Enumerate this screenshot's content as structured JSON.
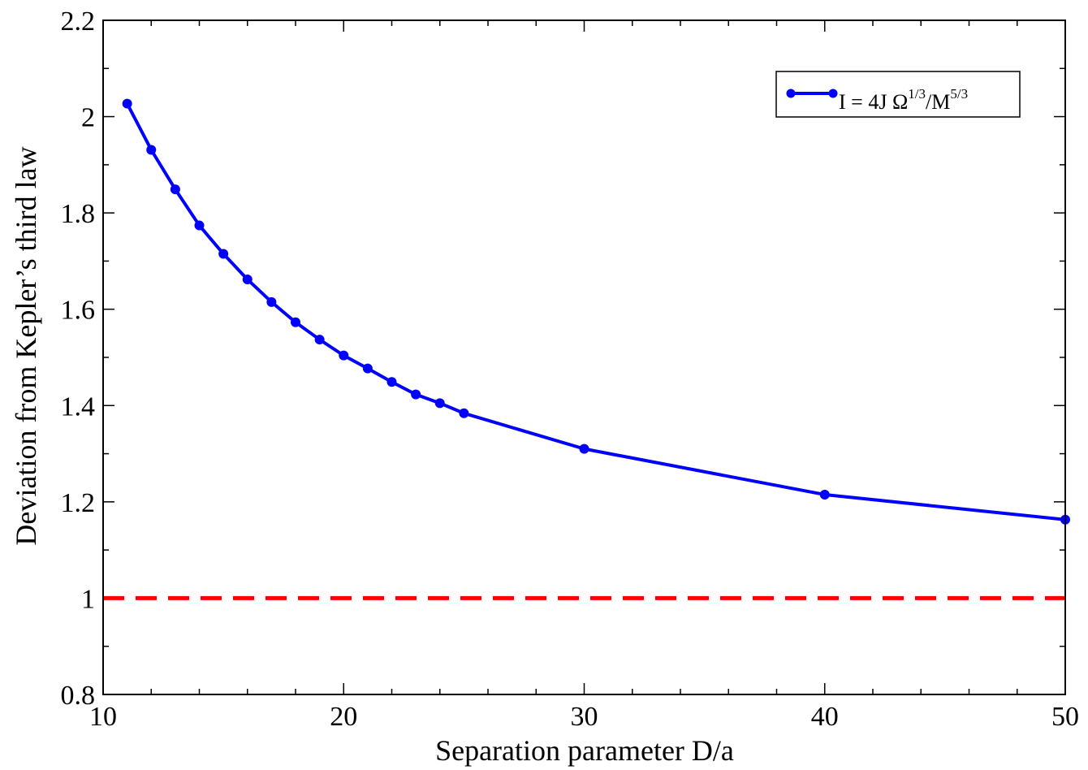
{
  "chart_data": {
    "type": "line",
    "title": "",
    "xlabel": "Separation parameter D/a",
    "ylabel": "Deviation from Kepler’s third law",
    "xlim": [
      10,
      50
    ],
    "ylim": [
      0.8,
      2.2
    ],
    "x_ticks": [
      "10",
      "20",
      "30",
      "40",
      "50"
    ],
    "y_ticks": [
      "0.8",
      "1",
      "1.2",
      "1.4",
      "1.6",
      "1.8",
      "2",
      "2.2"
    ],
    "grid": false,
    "legend_position": "top-right",
    "series": [
      {
        "name": "I = 4J Ω^{1/3}/M^{5/3}",
        "legend": {
          "base": "I = 4J Ω",
          "sup1": "1/3",
          "mid": "/M",
          "sup2": "5/3"
        },
        "color": "#0000ff",
        "style": "solid",
        "markers": true,
        "x": [
          11,
          12,
          13,
          14,
          15,
          16,
          17,
          18,
          19,
          20,
          21,
          22,
          23,
          24,
          25,
          30,
          40,
          50
        ],
        "y": [
          2.027,
          1.931,
          1.849,
          1.774,
          1.715,
          1.662,
          1.615,
          1.573,
          1.537,
          1.504,
          1.477,
          1.449,
          1.423,
          1.405,
          1.384,
          1.31,
          1.215,
          1.163
        ]
      },
      {
        "color": "#ff0000",
        "style": "dashed",
        "markers": false,
        "x": [
          10,
          50
        ],
        "y": [
          1,
          1
        ]
      }
    ]
  }
}
